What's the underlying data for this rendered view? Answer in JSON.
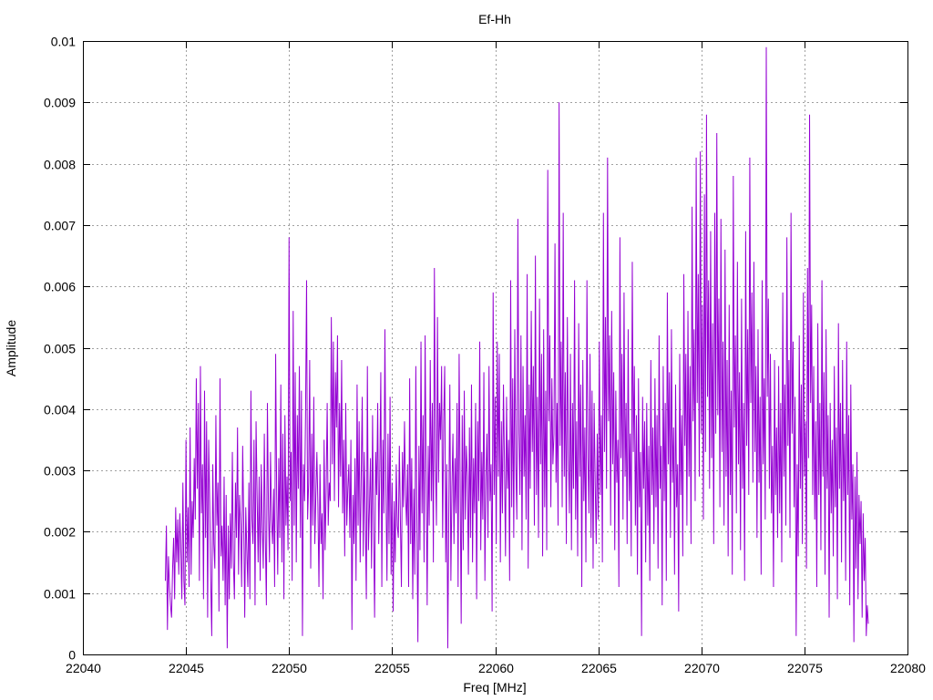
{
  "chart_data": {
    "type": "line",
    "title": "Ef-Hh",
    "xlabel": "Freq [MHz]",
    "ylabel": "Amplitude",
    "xlim": [
      22040,
      22080
    ],
    "ylim": [
      0,
      0.01
    ],
    "x_ticks": [
      "22040",
      "22045",
      "22050",
      "22055",
      "22060",
      "22065",
      "22070",
      "22075",
      "22080"
    ],
    "y_ticks": [
      "0",
      "0.001",
      "0.002",
      "0.003",
      "0.004",
      "0.005",
      "0.006",
      "0.007",
      "0.008",
      "0.009",
      "0.01"
    ],
    "grid": true,
    "series": [
      {
        "color": "#9400d3",
        "x_start": 22044.0,
        "x_end": 22076.0,
        "x_step": 0.05,
        "values": [
          0.0012,
          0.0021,
          0.0004,
          0.0016,
          0.0011,
          0.0008,
          0.0006,
          0.0014,
          0.0019,
          0.0009,
          0.0024,
          0.0015,
          0.0022,
          0.0013,
          0.0023,
          0.0017,
          0.0009,
          0.0028,
          0.0012,
          0.0008,
          0.0035,
          0.0015,
          0.0024,
          0.0011,
          0.0037,
          0.0013,
          0.0025,
          0.0019,
          0.0032,
          0.0022,
          0.0045,
          0.0027,
          0.0041,
          0.0012,
          0.0047,
          0.0023,
          0.0031,
          0.0009,
          0.0043,
          0.0019,
          0.0038,
          0.0006,
          0.0035,
          0.0025,
          0.0012,
          0.0003,
          0.0031,
          0.0018,
          0.0014,
          0.0039,
          0.0021,
          0.0028,
          0.0007,
          0.0045,
          0.0016,
          0.0021,
          0.0012,
          0.0029,
          0.0008,
          0.0026,
          0.0001,
          0.0021,
          0.0009,
          0.0023,
          0.0014,
          0.0033,
          0.0015,
          0.0009,
          0.0028,
          0.0019,
          0.0037,
          0.0013,
          0.0026,
          0.0021,
          0.0011,
          0.0034,
          0.0022,
          0.0006,
          0.0024,
          0.0017,
          0.0011,
          0.0028,
          0.0009,
          0.0043,
          0.0022,
          0.0018,
          0.0035,
          0.0008,
          0.0038,
          0.0026,
          0.0015,
          0.0029,
          0.0012,
          0.0031,
          0.0021,
          0.0014,
          0.0036,
          0.0019,
          0.0008,
          0.0041,
          0.0024,
          0.0015,
          0.0033,
          0.0022,
          0.0018,
          0.0027,
          0.0011,
          0.0049,
          0.0026,
          0.0013,
          0.0032,
          0.0019,
          0.0044,
          0.0015,
          0.0036,
          0.0009,
          0.0039,
          0.0021,
          0.0029,
          0.0017,
          0.0068,
          0.0025,
          0.0033,
          0.0012,
          0.0056,
          0.0021,
          0.0046,
          0.0015,
          0.0039,
          0.0027,
          0.0047,
          0.0019,
          0.0043,
          0.0003,
          0.0031,
          0.0025,
          0.0039,
          0.0061,
          0.0022,
          0.0028,
          0.0048,
          0.0014,
          0.0036,
          0.0021,
          0.0042,
          0.0018,
          0.0026,
          0.0033,
          0.0024,
          0.0011,
          0.0031,
          0.0018,
          0.0023,
          0.0009,
          0.0035,
          0.0017,
          0.0027,
          0.0041,
          0.0021,
          0.0028,
          0.0025,
          0.0055,
          0.0031,
          0.0051,
          0.0025,
          0.0046,
          0.0037,
          0.0052,
          0.0024,
          0.0041,
          0.0029,
          0.0048,
          0.0023,
          0.0035,
          0.0016,
          0.0041,
          0.0021,
          0.0027,
          0.0031,
          0.0019,
          0.0035,
          0.0004,
          0.0026,
          0.0018,
          0.0032,
          0.0012,
          0.0044,
          0.0021,
          0.0038,
          0.0015,
          0.0029,
          0.0042,
          0.0016,
          0.0033,
          0.0022,
          0.0009,
          0.0047,
          0.0017,
          0.0024,
          0.0032,
          0.0014,
          0.0039,
          0.0021,
          0.0006,
          0.0033,
          0.0026,
          0.0041,
          0.0018,
          0.0029,
          0.0046,
          0.0011,
          0.0035,
          0.0023,
          0.0053,
          0.0027,
          0.0012,
          0.0036,
          0.0018,
          0.0042,
          0.0013,
          0.0028,
          0.0007,
          0.0025,
          0.0015,
          0.0031,
          0.0021,
          0.0019,
          0.0034,
          0.0022,
          0.0011,
          0.0033,
          0.0024,
          0.0038,
          0.0026,
          0.0021,
          0.0031,
          0.0011,
          0.0045,
          0.0018,
          0.0032,
          0.0009,
          0.0027,
          0.0013,
          0.0047,
          0.0022,
          0.0002,
          0.0034,
          0.0017,
          0.0051,
          0.0023,
          0.0039,
          0.0015,
          0.0052,
          0.0029,
          0.0008,
          0.0034,
          0.0021,
          0.0048,
          0.0025,
          0.0041,
          0.0015,
          0.0063,
          0.0032,
          0.0021,
          0.0055,
          0.0028,
          0.0041,
          0.0035,
          0.0047,
          0.0019,
          0.0038,
          0.0047,
          0.0015,
          0.0031,
          0.0001,
          0.0024,
          0.0044,
          0.0012,
          0.0027,
          0.0036,
          0.0018,
          0.0032,
          0.0023,
          0.0041,
          0.0011,
          0.0049,
          0.0028,
          0.0005,
          0.0039,
          0.0017,
          0.0043,
          0.0022,
          0.0034,
          0.0029,
          0.0013,
          0.0037,
          0.0019,
          0.0044,
          0.0015,
          0.0032,
          0.0023,
          0.0041,
          0.0009,
          0.0038,
          0.0025,
          0.0051,
          0.0017,
          0.0033,
          0.0022,
          0.0046,
          0.0012,
          0.0029,
          0.0036,
          0.0019,
          0.0047,
          0.0025,
          0.0031,
          0.0007,
          0.0059,
          0.0026,
          0.0042,
          0.0018,
          0.0051,
          0.0029,
          0.0049,
          0.0015,
          0.0038,
          0.0023,
          0.0044,
          0.0031,
          0.0016,
          0.0042,
          0.0027,
          0.0035,
          0.0012,
          0.0061,
          0.0024,
          0.0045,
          0.0019,
          0.0053,
          0.0031,
          0.0022,
          0.0071,
          0.0036,
          0.0026,
          0.0052,
          0.0017,
          0.0047,
          0.0029,
          0.0039,
          0.0022,
          0.0062,
          0.0014,
          0.0044,
          0.0027,
          0.0056,
          0.0033,
          0.0047,
          0.0021,
          0.0065,
          0.0026,
          0.0042,
          0.0019,
          0.0058,
          0.0031,
          0.0049,
          0.0016,
          0.0053,
          0.0024,
          0.0043,
          0.0017,
          0.0079,
          0.0038,
          0.0052,
          0.0024,
          0.0045,
          0.0031,
          0.0036,
          0.0067,
          0.0028,
          0.0041,
          0.0021,
          0.009,
          0.0034,
          0.0051,
          0.0024,
          0.0072,
          0.0029,
          0.0046,
          0.0018,
          0.0055,
          0.0033,
          0.0023,
          0.0049,
          0.0017,
          0.0041,
          0.0027,
          0.0061,
          0.0022,
          0.0038,
          0.0016,
          0.0054,
          0.0029,
          0.0044,
          0.0011,
          0.0048,
          0.0025,
          0.0037,
          0.0015,
          0.0061,
          0.0032,
          0.0023,
          0.0049,
          0.0019,
          0.0043,
          0.0014,
          0.0041,
          0.0028,
          0.0018,
          0.0036,
          0.0022,
          0.0051,
          0.0026,
          0.0039,
          0.0015,
          0.0072,
          0.0033,
          0.0055,
          0.0027,
          0.0081,
          0.0038,
          0.0052,
          0.0021,
          0.0056,
          0.0031,
          0.0046,
          0.0017,
          0.0043,
          0.0028,
          0.0035,
          0.0011,
          0.0068,
          0.0032,
          0.0049,
          0.0022,
          0.0059,
          0.0029,
          0.0041,
          0.0018,
          0.0053,
          0.0025,
          0.0036,
          0.0016,
          0.0064,
          0.0033,
          0.0047,
          0.0021,
          0.0039,
          0.0013,
          0.0045,
          0.0024,
          0.0033,
          0.0003,
          0.0042,
          0.0027,
          0.0038,
          0.0015,
          0.0041,
          0.0021,
          0.0034,
          0.0012,
          0.0048,
          0.0026,
          0.0037,
          0.0018,
          0.0045,
          0.0024,
          0.0039,
          0.0014,
          0.0052,
          0.0027,
          0.0034,
          0.0008,
          0.0047,
          0.0025,
          0.0041,
          0.0012,
          0.0059,
          0.0031,
          0.0046,
          0.0019,
          0.0053,
          0.0028,
          0.0037,
          0.0013,
          0.0044,
          0.0024,
          0.0031,
          0.0007,
          0.0049,
          0.0026,
          0.0039,
          0.0016,
          0.0062,
          0.0034,
          0.0049,
          0.0021,
          0.0056,
          0.0029,
          0.0047,
          0.0018,
          0.0073,
          0.0038,
          0.0053,
          0.0025,
          0.0081,
          0.0041,
          0.0062,
          0.0029,
          0.0082,
          0.0036,
          0.0057,
          0.0022,
          0.0075,
          0.0033,
          0.0088,
          0.0042,
          0.0061,
          0.0027,
          0.0069,
          0.0032,
          0.0054,
          0.0018,
          0.0072,
          0.0036,
          0.0085,
          0.0039,
          0.0058,
          0.0024,
          0.0071,
          0.0033,
          0.0051,
          0.0021,
          0.0066,
          0.0029,
          0.0048,
          0.0016,
          0.0057,
          0.0026,
          0.0043,
          0.0013,
          0.0078,
          0.0037,
          0.0052,
          0.0023,
          0.0064,
          0.0031,
          0.0046,
          0.0017,
          0.0058,
          0.0027,
          0.0041,
          0.0012,
          0.0069,
          0.0034,
          0.0053,
          0.0026,
          0.0081,
          0.0041,
          0.0059,
          0.0028,
          0.0064,
          0.0033,
          0.0047,
          0.0019,
          0.0053,
          0.0028,
          0.0042,
          0.0013,
          0.0061,
          0.0031,
          0.0045,
          0.0022,
          0.0099,
          0.0042,
          0.0058,
          0.0027,
          0.0049,
          0.0023,
          0.0034,
          0.0011,
          0.0048,
          0.0026,
          0.0037,
          0.0019,
          0.0047,
          0.0023,
          0.0041,
          0.0015,
          0.0059,
          0.0029,
          0.0044,
          0.0021,
          0.0068,
          0.0034,
          0.0048,
          0.0019,
          0.0072,
          0.0036,
          0.0051,
          0.0024,
          0.0042,
          0.0003,
          0.0031,
          0.0016,
          0.0052,
          0.0027,
          0.0044,
          0.0018,
          0.0059,
          0.0029,
          0.0038,
          0.0014,
          0.0063,
          0.0032,
          0.0088,
          0.0041,
          0.0057,
          0.0026,
          0.0047,
          0.0022,
          0.0038,
          0.0011,
          0.0054,
          0.0026,
          0.0041,
          0.0017,
          0.0061,
          0.0029,
          0.0046,
          0.0013,
          0.0053,
          0.0027,
          0.0039,
          0.0006,
          0.0041,
          0.0023,
          0.0035,
          0.0016,
          0.0047,
          0.0024,
          0.0037,
          0.0009,
          0.0054,
          0.0027,
          0.0041,
          0.0015,
          0.0048,
          0.0025,
          0.0036,
          0.0012,
          0.0051,
          0.0026,
          0.0039,
          0.0008,
          0.0044,
          0.0022,
          0.0031,
          0.0002,
          0.0029,
          0.0014,
          0.0033,
          0.0009,
          0.0026,
          0.0018,
          0.0025,
          0.0006,
          0.0023,
          0.0012,
          0.0019,
          0.0003,
          0.0008,
          0.0005
        ]
      }
    ]
  }
}
